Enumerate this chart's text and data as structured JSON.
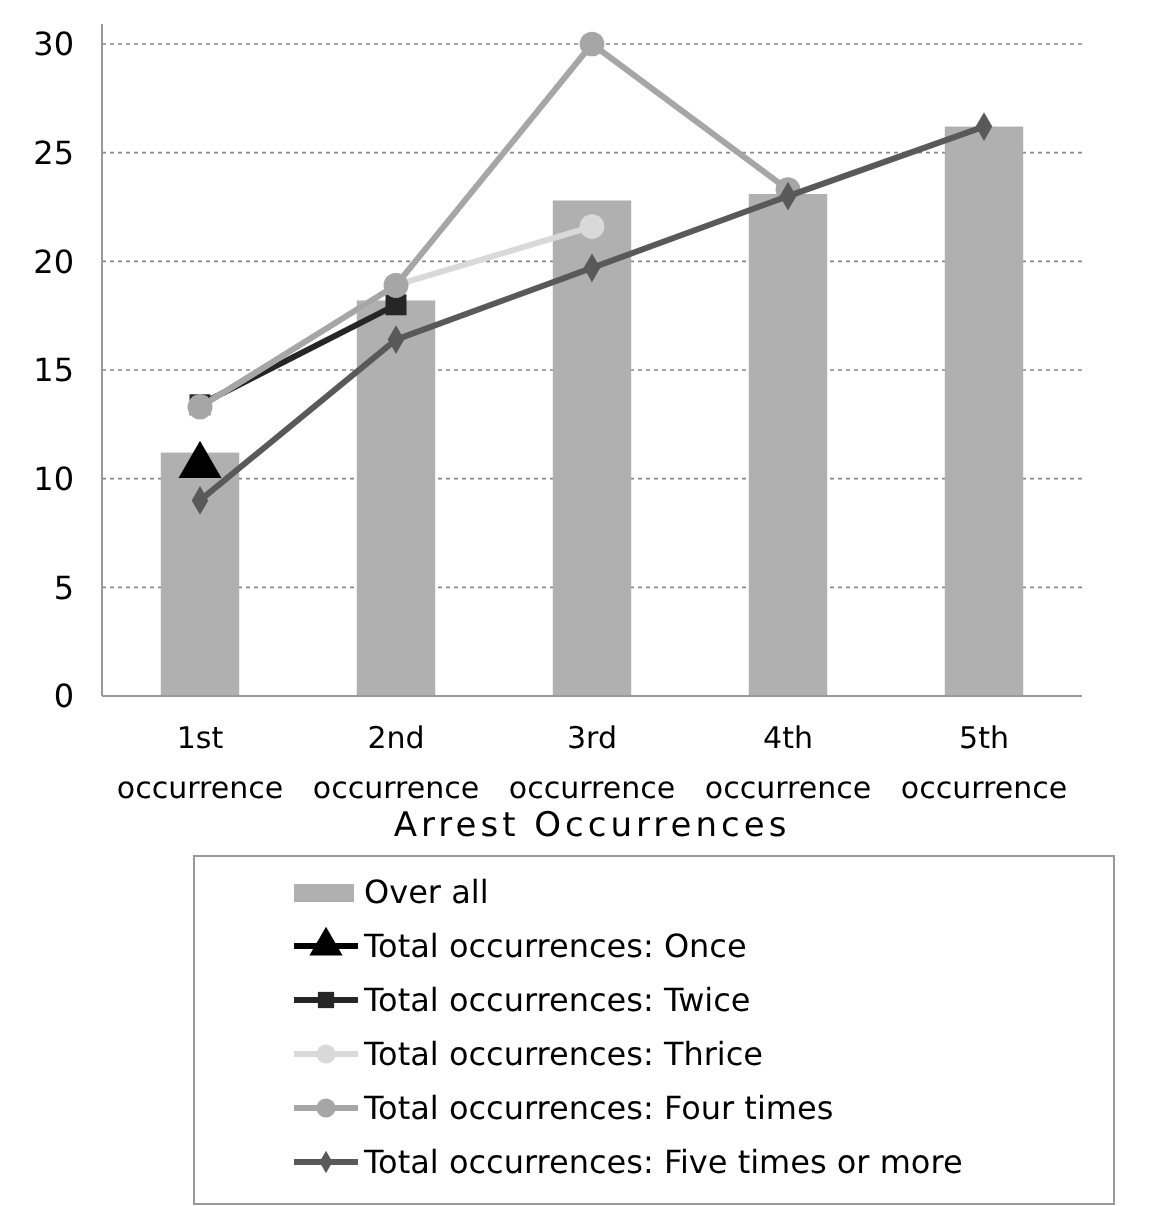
{
  "chart_data": {
    "type": "bar",
    "xlabel": "Arrest Occurrences",
    "categories": [
      "1st occurrence",
      "2nd occurrence",
      "3rd occurrence",
      "4th occurrence",
      "5th occurrence"
    ],
    "series": [
      {
        "name": "Over all",
        "color": "#b0b0b0",
        "values": [
          11.2,
          18.2,
          22.8,
          23.1,
          26.2
        ]
      },
      {
        "name": "Total occurrences: Once",
        "type": "line",
        "marker": "triangle",
        "color": "#000000",
        "values": [
          10.6,
          null,
          null,
          null,
          null
        ]
      },
      {
        "name": "Total occurrences: Twice",
        "type": "line",
        "marker": "square",
        "color": "#262626",
        "values": [
          13.4,
          18.0,
          null,
          null,
          null
        ]
      },
      {
        "name": "Total occurrences: Thrice",
        "type": "line",
        "marker": "circle",
        "color": "#d9d9d9",
        "values": [
          13.3,
          18.9,
          21.6,
          null,
          null
        ]
      },
      {
        "name": "Total occurrences: Four times",
        "type": "line",
        "marker": "circle",
        "color": "#a6a6a6",
        "values": [
          13.3,
          18.9,
          30.0,
          23.3,
          null
        ]
      },
      {
        "name": "Total occurrences: Five times or more",
        "type": "line",
        "marker": "diamond",
        "color": "#595959",
        "values": [
          9.0,
          16.4,
          19.7,
          23.0,
          26.2
        ]
      }
    ],
    "ylim": [
      0,
      30
    ],
    "yticks": [
      0,
      5,
      10,
      15,
      20,
      25,
      30
    ],
    "grid": "y",
    "legend": "bottom"
  }
}
